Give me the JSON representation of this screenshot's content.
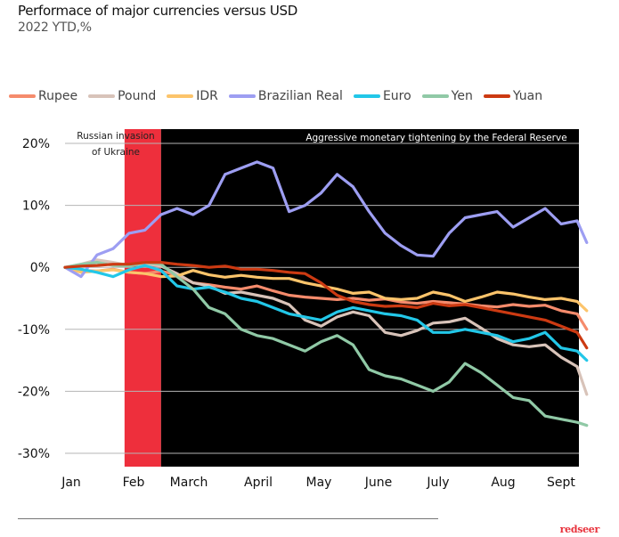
{
  "header": {
    "title": "Performace of major currencies versus USD",
    "subtitle": "2022 YTD,%"
  },
  "footer": {
    "brand": "redseer"
  },
  "chart_data": {
    "type": "line",
    "title": "Performace of major currencies versus USD",
    "subtitle": "2022 YTD,%",
    "xlabel": "",
    "ylabel": "",
    "ylim": [
      -30,
      20
    ],
    "yticks": [
      20,
      10,
      0,
      -10,
      -20,
      -30
    ],
    "ytick_labels": [
      "20%",
      "10%",
      "0%",
      "-10%",
      "-20%",
      "-30%"
    ],
    "xlim": [
      0,
      8.25
    ],
    "xticks": [
      0,
      1,
      2,
      3,
      4,
      5,
      6,
      7,
      8
    ],
    "xtick_labels": [
      "Jan",
      "Feb",
      "March",
      "April",
      "May",
      "June",
      "July",
      "Aug",
      "Sept"
    ],
    "grid": "horizontal",
    "legend_position": "top",
    "annotations": [
      {
        "text_lines": [
          "Russian invasion",
          "of Ukraine"
        ],
        "from": 0.93,
        "to": 1.5,
        "band_color": "#ee2f3c"
      },
      {
        "text": "Aggressive monetary tightening by the Federal Reserve",
        "from": 1.5,
        "to": 8.25,
        "band_color": "#000000"
      }
    ],
    "x": [
      0,
      0.25,
      0.5,
      0.75,
      1,
      1.25,
      1.5,
      1.75,
      2,
      2.25,
      2.5,
      2.75,
      3,
      3.25,
      3.5,
      3.75,
      4,
      4.25,
      4.5,
      4.75,
      5,
      5.25,
      5.5,
      5.75,
      6,
      6.25,
      6.5,
      6.75,
      7,
      7.25,
      7.5,
      7.75,
      8,
      8.15
    ],
    "series": [
      {
        "name": "Rupee",
        "color": "#f58b6c",
        "values": [
          0,
          -0.5,
          -0.6,
          -0.3,
          -0.8,
          -1.0,
          -0.6,
          -1.2,
          -2.5,
          -2.8,
          -3.2,
          -3.5,
          -3.0,
          -3.8,
          -4.5,
          -4.8,
          -5.0,
          -5.2,
          -5.0,
          -5.3,
          -5.1,
          -5.6,
          -5.8,
          -5.5,
          -5.7,
          -5.9,
          -6.2,
          -6.4,
          -6.0,
          -6.3,
          -6.1,
          -7.0,
          -7.5,
          -10.0
        ]
      },
      {
        "name": "Pound",
        "color": "#d8c3b9",
        "values": [
          0,
          0.5,
          1.2,
          0.8,
          0.3,
          0.6,
          0.2,
          -1.0,
          -2.5,
          -3.0,
          -4.2,
          -4.0,
          -4.5,
          -5.0,
          -6.0,
          -8.5,
          -9.5,
          -8.0,
          -7.2,
          -7.8,
          -10.5,
          -11.0,
          -10.2,
          -9.0,
          -8.8,
          -8.2,
          -9.8,
          -11.5,
          -12.5,
          -12.8,
          -12.5,
          -14.5,
          -16.0,
          -20.5
        ]
      },
      {
        "name": "IDR",
        "color": "#fcc46b",
        "values": [
          0,
          -0.8,
          -0.6,
          -0.4,
          -0.8,
          -1.0,
          -1.5,
          -1.4,
          -0.5,
          -1.2,
          -1.6,
          -1.3,
          -1.6,
          -1.8,
          -1.8,
          -2.5,
          -3.0,
          -3.5,
          -4.2,
          -4.0,
          -5.0,
          -5.2,
          -5.0,
          -4.0,
          -4.5,
          -5.5,
          -4.8,
          -4.0,
          -4.3,
          -4.8,
          -5.2,
          -5.0,
          -5.5,
          -7.0
        ]
      },
      {
        "name": "Brazilian Real",
        "color": "#9d9ef2",
        "values": [
          0,
          -1.5,
          2.0,
          3.0,
          5.5,
          6.0,
          8.5,
          9.5,
          8.5,
          10.0,
          15.0,
          16.0,
          17.0,
          16.0,
          9.0,
          10.0,
          12.0,
          15.0,
          13.0,
          9.0,
          5.5,
          3.5,
          2.0,
          1.8,
          5.5,
          8.0,
          8.5,
          9.0,
          6.5,
          8.0,
          9.5,
          7.0,
          7.5,
          4.0
        ]
      },
      {
        "name": "Euro",
        "color": "#22c7e8",
        "values": [
          0,
          -0.3,
          -0.8,
          -1.5,
          -0.4,
          0.3,
          -0.5,
          -3.0,
          -3.5,
          -3.2,
          -4.0,
          -5.0,
          -5.5,
          -6.5,
          -7.5,
          -8.0,
          -8.5,
          -7.2,
          -6.5,
          -7.0,
          -7.5,
          -7.8,
          -8.5,
          -10.5,
          -10.5,
          -10.0,
          -10.5,
          -11.0,
          -12.0,
          -11.5,
          -10.5,
          -13.0,
          -13.5,
          -15.0
        ]
      },
      {
        "name": "Yen",
        "color": "#90c9a6",
        "values": [
          0,
          0.5,
          0.8,
          0.3,
          0.2,
          0.8,
          0.5,
          -1.5,
          -3.5,
          -6.5,
          -7.5,
          -10.0,
          -11.0,
          -11.5,
          -12.5,
          -13.5,
          -12.0,
          -11.0,
          -12.5,
          -16.5,
          -17.5,
          -18.0,
          -19.0,
          -20.0,
          -18.5,
          -15.5,
          -17.0,
          -19.0,
          -21.0,
          -21.5,
          -24.0,
          -24.5,
          -25.0,
          -25.5
        ]
      },
      {
        "name": "Yuan",
        "color": "#cc3a12",
        "values": [
          0,
          0.2,
          0.3,
          0.5,
          0.5,
          0.8,
          0.8,
          0.5,
          0.3,
          0.0,
          0.2,
          -0.3,
          -0.3,
          -0.5,
          -0.8,
          -1.0,
          -2.5,
          -4.5,
          -5.5,
          -6.0,
          -6.3,
          -6.2,
          -6.5,
          -5.8,
          -6.2,
          -6.0,
          -6.5,
          -7.0,
          -7.5,
          -8.0,
          -8.5,
          -9.5,
          -10.5,
          -13.0
        ]
      }
    ]
  }
}
